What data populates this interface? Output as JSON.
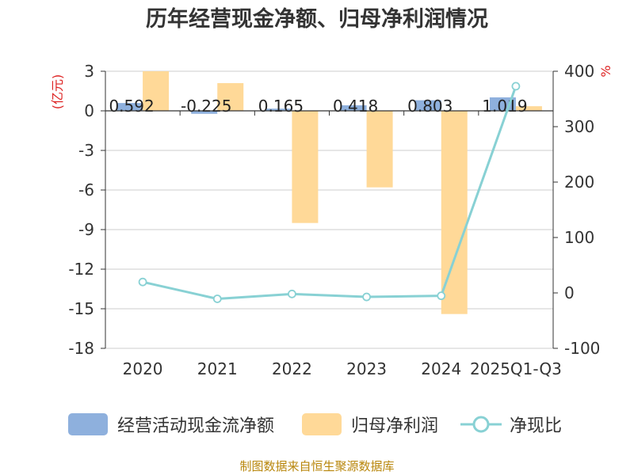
{
  "chart_data": {
    "type": "bar",
    "title": "历年经营现金净额、归母净利润情况",
    "categories": [
      "2020",
      "2021",
      "2022",
      "2023",
      "2024",
      "2025Q1-Q3"
    ],
    "ylabel_left": "(亿元)",
    "ylabel_right": "%",
    "ylim_left": [
      -18,
      3
    ],
    "ylim_right": [
      -100,
      400
    ],
    "yticks_left": [
      "3",
      "0",
      "-3",
      "-6",
      "-9",
      "-12",
      "-15",
      "-18"
    ],
    "yticks_right": [
      "400",
      "300",
      "200",
      "100",
      "0",
      "-100"
    ],
    "series": [
      {
        "name": "经营活动现金流净额",
        "axis": "left",
        "kind": "bar",
        "color": "#8eb0dd",
        "values": [
          0.592,
          -0.225,
          0.165,
          0.418,
          0.803,
          1.019
        ],
        "labels": [
          "0.592",
          "-0.225",
          "0.165",
          "0.418",
          "0.803",
          "1.019"
        ]
      },
      {
        "name": "归母净利润",
        "axis": "left",
        "kind": "bar",
        "color": "#ffd998",
        "values": [
          3.0,
          2.1,
          -8.5,
          -5.8,
          -15.4,
          0.35
        ]
      },
      {
        "name": "净现比",
        "axis": "right",
        "kind": "line",
        "color": "#88d1d4",
        "values": [
          19.7,
          -10.7,
          -1.9,
          -7.2,
          -5.2,
          373
        ]
      }
    ]
  },
  "legend": {
    "items": [
      "经营活动现金流净额",
      "归母净利润",
      "净现比"
    ]
  },
  "source": "制图数据来自恒生聚源数据库"
}
